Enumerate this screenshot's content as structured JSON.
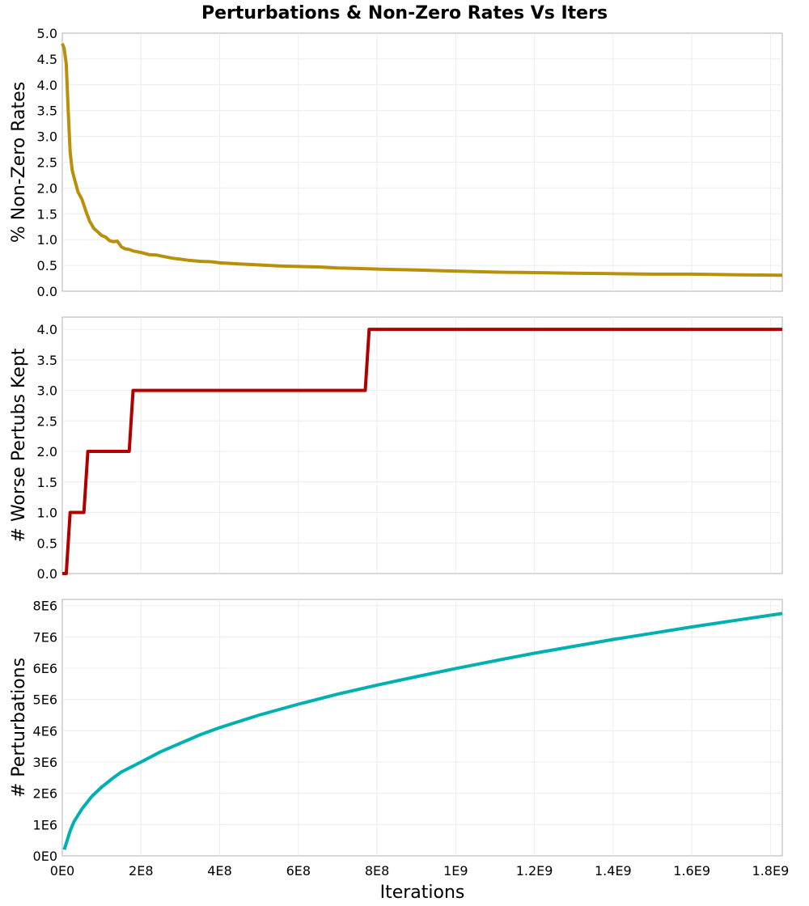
{
  "title": "Perturbations & Non-Zero Rates Vs Iters",
  "chart_data": [
    {
      "type": "line",
      "ylabel": "% Non-Zero Rates",
      "xlabel": "",
      "xlim": [
        0,
        1830000000
      ],
      "ylim": [
        0,
        5
      ],
      "yticks": [
        0,
        0.5,
        1,
        1.5,
        2,
        2.5,
        3,
        3.5,
        4,
        4.5,
        5
      ],
      "yticklabels": [
        "0.0",
        "0.5",
        "1.0",
        "1.5",
        "2.0",
        "2.5",
        "3.0",
        "3.5",
        "4.0",
        "4.5",
        "5.0"
      ],
      "grid": true,
      "color": "#b8900a",
      "x": [
        0,
        5000000,
        10000000,
        15000000,
        20000000,
        25000000,
        30000000,
        40000000,
        50000000,
        60000000,
        70000000,
        80000000,
        90000000,
        100000000,
        110000000,
        120000000,
        130000000,
        140000000,
        150000000,
        160000000,
        170000000,
        180000000,
        200000000,
        220000000,
        240000000,
        260000000,
        280000000,
        300000000,
        320000000,
        350000000,
        380000000,
        400000000,
        450000000,
        500000000,
        550000000,
        600000000,
        650000000,
        700000000,
        750000000,
        800000000,
        850000000,
        900000000,
        950000000,
        1000000000,
        1100000000,
        1200000000,
        1300000000,
        1400000000,
        1500000000,
        1600000000,
        1700000000,
        1830000000
      ],
      "y": [
        4.8,
        4.7,
        4.4,
        3.5,
        2.7,
        2.35,
        2.2,
        1.92,
        1.78,
        1.55,
        1.35,
        1.22,
        1.15,
        1.08,
        1.05,
        0.98,
        0.96,
        0.97,
        0.86,
        0.82,
        0.81,
        0.78,
        0.75,
        0.71,
        0.7,
        0.67,
        0.64,
        0.62,
        0.6,
        0.58,
        0.57,
        0.55,
        0.53,
        0.51,
        0.49,
        0.48,
        0.47,
        0.45,
        0.44,
        0.43,
        0.42,
        0.41,
        0.4,
        0.39,
        0.37,
        0.36,
        0.35,
        0.34,
        0.33,
        0.33,
        0.32,
        0.31
      ]
    },
    {
      "type": "line",
      "ylabel": "# Worse Pertubs Kept",
      "xlabel": "",
      "xlim": [
        0,
        1830000000
      ],
      "ylim": [
        0,
        4.2
      ],
      "yticks": [
        0,
        0.5,
        1,
        1.5,
        2,
        2.5,
        3,
        3.5,
        4
      ],
      "yticklabels": [
        "0.0",
        "0.5",
        "1.0",
        "1.5",
        "2.0",
        "2.5",
        "3.0",
        "3.5",
        "4.0"
      ],
      "grid": true,
      "color": "#b00000",
      "x": [
        0,
        10000000,
        20000000,
        55000000,
        65000000,
        170000000,
        180000000,
        770000000,
        780000000,
        1830000000
      ],
      "y": [
        0,
        0,
        1,
        1,
        2,
        2,
        3,
        3,
        4,
        4
      ]
    },
    {
      "type": "line",
      "ylabel": "# Perturbations",
      "xlabel": "Iterations",
      "xlim": [
        0,
        1830000000
      ],
      "ylim": [
        0,
        8200000
      ],
      "yticks": [
        0,
        1000000,
        2000000,
        3000000,
        4000000,
        5000000,
        6000000,
        7000000,
        8000000
      ],
      "yticklabels": [
        "0E0",
        "1E6",
        "2E6",
        "3E6",
        "4E6",
        "5E6",
        "6E6",
        "7E6",
        "8E6"
      ],
      "xticks": [
        0,
        200000000,
        400000000,
        600000000,
        800000000,
        1000000000,
        1200000000,
        1400000000,
        1600000000,
        1800000000
      ],
      "xticklabels": [
        "0E0",
        "2E8",
        "4E8",
        "6E8",
        "8E8",
        "1E9",
        "1.2E9",
        "1.4E9",
        "1.6E9",
        "1.8E9"
      ],
      "grid": true,
      "color": "#00b0b0",
      "x": [
        5000000,
        10000000,
        20000000,
        30000000,
        50000000,
        75000000,
        100000000,
        125000000,
        150000000,
        200000000,
        250000000,
        300000000,
        350000000,
        400000000,
        500000000,
        600000000,
        700000000,
        800000000,
        900000000,
        1000000000,
        1100000000,
        1200000000,
        1300000000,
        1400000000,
        1500000000,
        1600000000,
        1700000000,
        1830000000
      ],
      "y": [
        200000,
        400000,
        800000,
        1100000,
        1500000,
        1900000,
        2200000,
        2450000,
        2680000,
        3000000,
        3330000,
        3600000,
        3870000,
        4100000,
        4500000,
        4850000,
        5170000,
        5460000,
        5730000,
        5990000,
        6240000,
        6480000,
        6700000,
        6920000,
        7120000,
        7320000,
        7510000,
        7750000
      ]
    }
  ]
}
